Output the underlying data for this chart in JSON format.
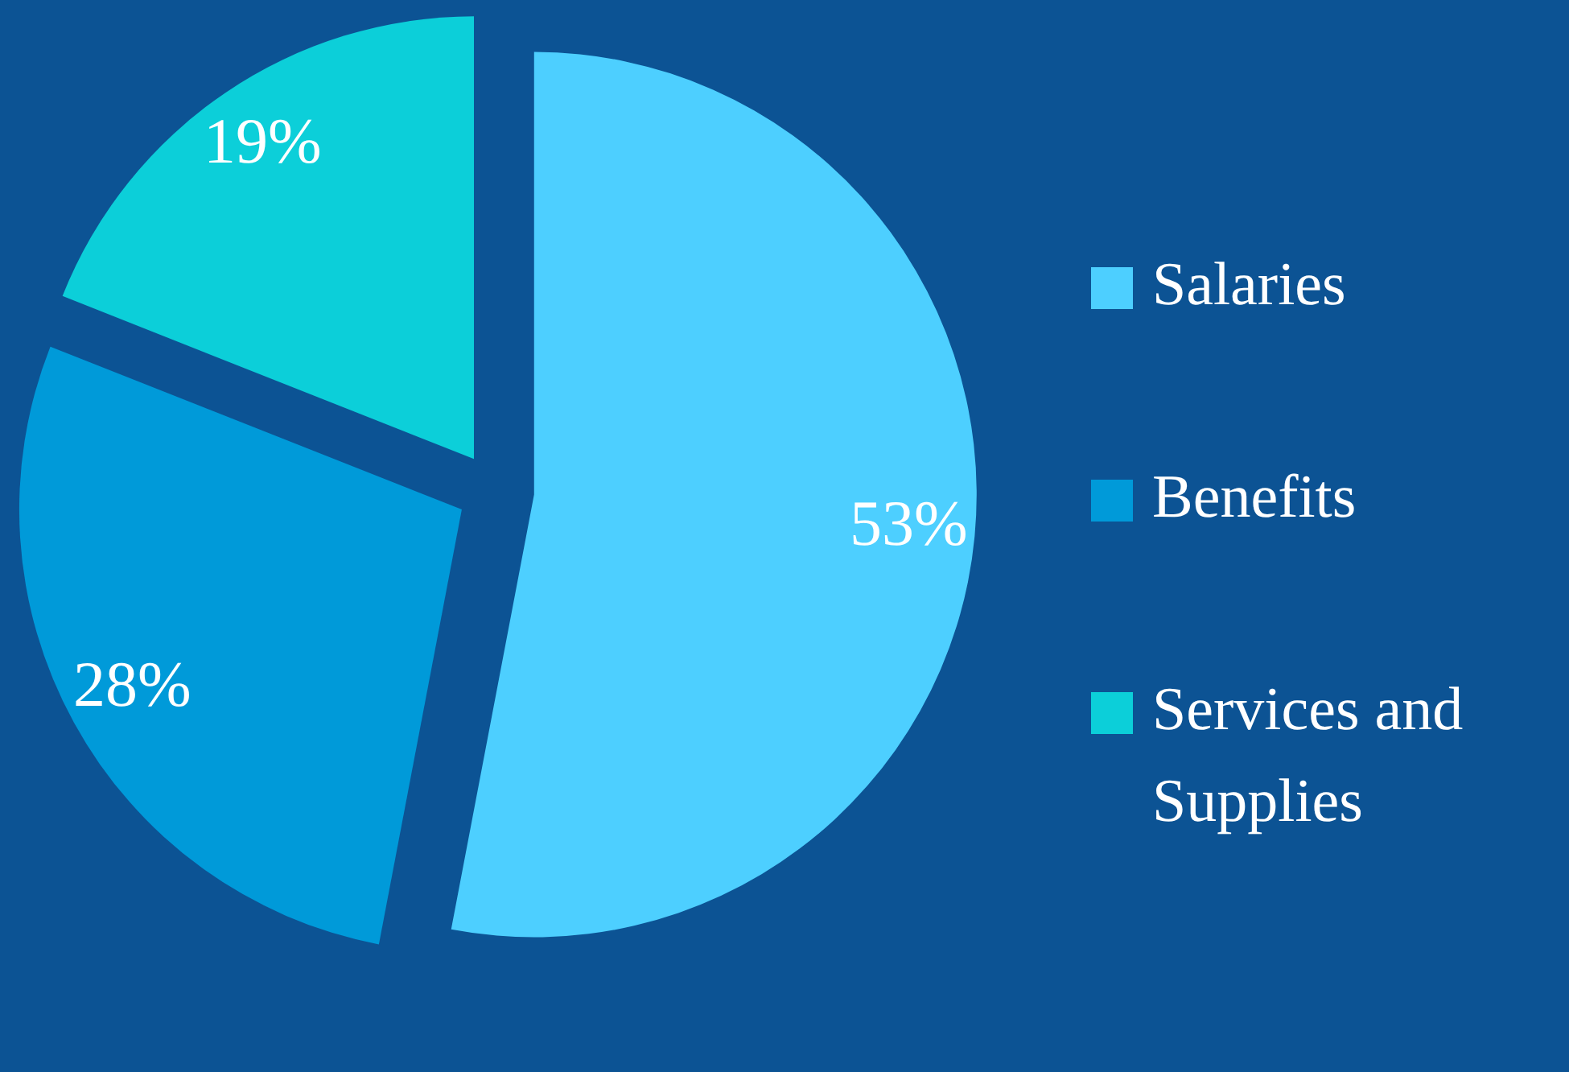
{
  "chart_data": {
    "type": "pie",
    "categories": [
      "Salaries",
      "Benefits",
      "Services and Supplies"
    ],
    "values": [
      53,
      28,
      19
    ],
    "colors": [
      "#4dcfff",
      "#009ad9",
      "#0ccfd9"
    ],
    "value_labels": [
      "53%",
      "28%",
      "19%"
    ],
    "legend": "right"
  }
}
